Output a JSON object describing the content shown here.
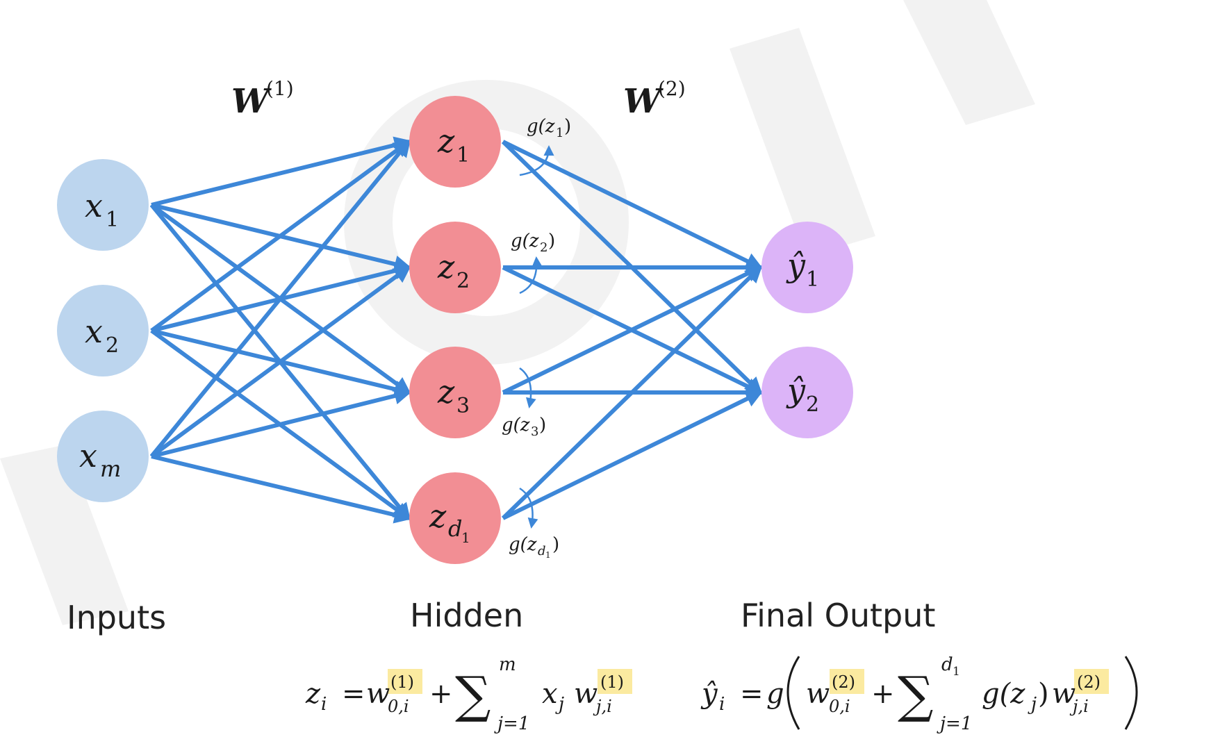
{
  "colors": {
    "edge": "#3d87d8",
    "input_node": "#bcd5ee",
    "hidden_node": "#f28e94",
    "output_node": "#dcb4f8",
    "highlight": "#fbeaa0",
    "text": "#1a1a1a"
  },
  "weights": {
    "w1": {
      "base": "W",
      "sup": "(1)"
    },
    "w2": {
      "base": "W",
      "sup": "(2)"
    }
  },
  "inputs": [
    {
      "name": "x",
      "sub": "1"
    },
    {
      "name": "x",
      "sub": "2"
    },
    {
      "name": "x",
      "sub": "m"
    }
  ],
  "hidden": [
    {
      "name": "z",
      "sub": "1",
      "act": "g(z",
      "act_sub": "1",
      "act_close": ")"
    },
    {
      "name": "z",
      "sub": "2",
      "act": "g(z",
      "act_sub": "2",
      "act_close": ")"
    },
    {
      "name": "z",
      "sub": "3",
      "act": "g(z",
      "act_sub": "3",
      "act_close": ")"
    },
    {
      "name": "z",
      "sub": "d",
      "subsub": "1",
      "act": "g(z",
      "act_sub": "d",
      "act_subsub": "1",
      "act_close": ")"
    }
  ],
  "outputs": [
    {
      "name": "ŷ",
      "sub": "1"
    },
    {
      "name": "ŷ",
      "sub": "2"
    }
  ],
  "column_labels": {
    "inputs": "Inputs",
    "hidden": "Hidden",
    "output": "Final Output"
  },
  "equations": {
    "hidden": {
      "lhs": "z",
      "lhs_sub": "i",
      "eq": "=",
      "w": "w",
      "w_sup": "(1)",
      "w_sub": "0,i",
      "plus": "+",
      "sigma": "∑",
      "sigma_top": "m",
      "sigma_bottom": "j=1",
      "x": "x",
      "x_sub": "j",
      "w2": "w",
      "w2_sup": "(1)",
      "w2_sub": "j,i"
    },
    "output": {
      "lhs": "ŷ",
      "lhs_sub": "i",
      "eq": "=",
      "g": "g",
      "w": "w",
      "w_sup": "(2)",
      "w_sub": "0,i",
      "plus": "+",
      "sigma": "∑",
      "sigma_top": "d",
      "sigma_top_sub": "1",
      "sigma_bottom": "j=1",
      "gz": "g(z",
      "gz_sub": "j",
      "gz_close": ")",
      "w2": "w",
      "w2_sup": "(2)",
      "w2_sub": "j,i"
    }
  }
}
